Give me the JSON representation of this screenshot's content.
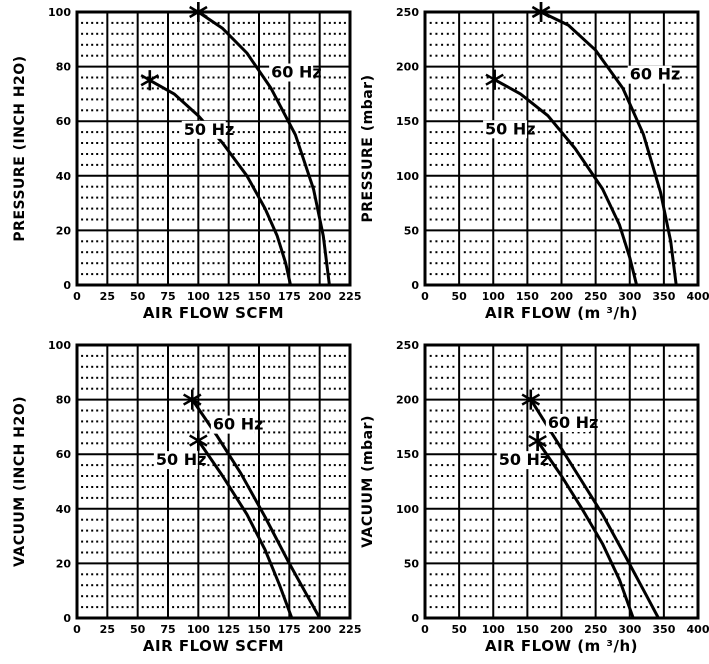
{
  "colors": {
    "ink": "#000000",
    "background": "#ffffff"
  },
  "chart_data": [
    {
      "type": "line",
      "xlabel": "AIR FLOW SCFM",
      "ylabel": "PRESSURE (INCH H2O)",
      "xlim": [
        0,
        225
      ],
      "ylim": [
        0,
        100
      ],
      "xticks": [
        "0",
        "25",
        "50",
        "75",
        "100",
        "125",
        "150",
        "175",
        "200",
        "225"
      ],
      "yticks": [
        "0",
        "20",
        "40",
        "60",
        "80",
        "100"
      ],
      "grid": true,
      "series": [
        {
          "name": "50 Hz",
          "marker": {
            "x": 60,
            "y": 75
          },
          "label": {
            "x": 88,
            "y": 55
          },
          "points": [
            [
              60,
              75
            ],
            [
              80,
              70
            ],
            [
              100,
              62
            ],
            [
              120,
              52
            ],
            [
              140,
              40
            ],
            [
              155,
              28
            ],
            [
              165,
              18
            ],
            [
              172,
              8
            ],
            [
              176,
              0
            ]
          ]
        },
        {
          "name": "60 Hz",
          "marker": {
            "x": 100,
            "y": 100
          },
          "label": {
            "x": 160,
            "y": 76
          },
          "points": [
            [
              100,
              100
            ],
            [
              120,
              94
            ],
            [
              140,
              85
            ],
            [
              160,
              72
            ],
            [
              180,
              55
            ],
            [
              195,
              35
            ],
            [
              203,
              18
            ],
            [
              208,
              0
            ]
          ]
        }
      ]
    },
    {
      "type": "line",
      "xlabel": "AIR FLOW (m ³/h)",
      "ylabel": "PRESSURE (mbar)",
      "xlim": [
        0,
        400
      ],
      "ylim": [
        0,
        250
      ],
      "xticks": [
        "0",
        "50",
        "100",
        "150",
        "200",
        "250",
        "300",
        "350",
        "400"
      ],
      "yticks": [
        "0",
        "50",
        "100",
        "150",
        "200",
        "250"
      ],
      "grid": true,
      "series": [
        {
          "name": "50 Hz",
          "marker": {
            "x": 102,
            "y": 188
          },
          "label": {
            "x": 88,
            "y": 138
          },
          "points": [
            [
              102,
              188
            ],
            [
              140,
              175
            ],
            [
              180,
              155
            ],
            [
              220,
              125
            ],
            [
              260,
              88
            ],
            [
              285,
              55
            ],
            [
              300,
              25
            ],
            [
              310,
              0
            ]
          ]
        },
        {
          "name": "60 Hz",
          "marker": {
            "x": 170,
            "y": 250
          },
          "label": {
            "x": 300,
            "y": 188
          },
          "points": [
            [
              170,
              250
            ],
            [
              210,
              238
            ],
            [
              250,
              215
            ],
            [
              290,
              180
            ],
            [
              320,
              138
            ],
            [
              345,
              85
            ],
            [
              360,
              40
            ],
            [
              368,
              0
            ]
          ]
        }
      ]
    },
    {
      "type": "line",
      "xlabel": "AIR FLOW SCFM",
      "ylabel": "VACUUM (INCH H2O)",
      "xlim": [
        0,
        225
      ],
      "ylim": [
        0,
        100
      ],
      "xticks": [
        "0",
        "25",
        "50",
        "75",
        "100",
        "125",
        "150",
        "175",
        "200",
        "225"
      ],
      "yticks": [
        "0",
        "20",
        "40",
        "60",
        "80",
        "100"
      ],
      "grid": true,
      "series": [
        {
          "name": "50 Hz",
          "marker": {
            "x": 100,
            "y": 65
          },
          "label": {
            "x": 65,
            "y": 56
          },
          "points": [
            [
              100,
              65
            ],
            [
              120,
              52
            ],
            [
              140,
              38
            ],
            [
              155,
              25
            ],
            [
              167,
              12
            ],
            [
              177,
              0
            ]
          ]
        },
        {
          "name": "60 Hz",
          "marker": {
            "x": 95,
            "y": 80
          },
          "label": {
            "x": 112,
            "y": 69
          },
          "points": [
            [
              95,
              80
            ],
            [
              115,
              67
            ],
            [
              135,
              53
            ],
            [
              155,
              37
            ],
            [
              175,
              20
            ],
            [
              190,
              8
            ],
            [
              200,
              0
            ]
          ]
        }
      ]
    },
    {
      "type": "line",
      "xlabel": "AIR FLOW (m ³/h)",
      "ylabel": "VACUUM (mbar)",
      "xlim": [
        0,
        400
      ],
      "ylim": [
        0,
        250
      ],
      "xticks": [
        "0",
        "50",
        "100",
        "150",
        "200",
        "250",
        "300",
        "350",
        "400"
      ],
      "yticks": [
        "0",
        "50",
        "100",
        "150",
        "200",
        "250"
      ],
      "grid": true,
      "series": [
        {
          "name": "50 Hz",
          "marker": {
            "x": 165,
            "y": 162
          },
          "label": {
            "x": 108,
            "y": 140
          },
          "points": [
            [
              165,
              162
            ],
            [
              200,
              130
            ],
            [
              230,
              100
            ],
            [
              260,
              68
            ],
            [
              285,
              35
            ],
            [
              305,
              0
            ]
          ]
        },
        {
          "name": "60 Hz",
          "marker": {
            "x": 155,
            "y": 200
          },
          "label": {
            "x": 180,
            "y": 174
          },
          "points": [
            [
              155,
              200
            ],
            [
              190,
              165
            ],
            [
              225,
              130
            ],
            [
              260,
              95
            ],
            [
              295,
              55
            ],
            [
              325,
              20
            ],
            [
              342,
              0
            ]
          ]
        }
      ]
    }
  ]
}
